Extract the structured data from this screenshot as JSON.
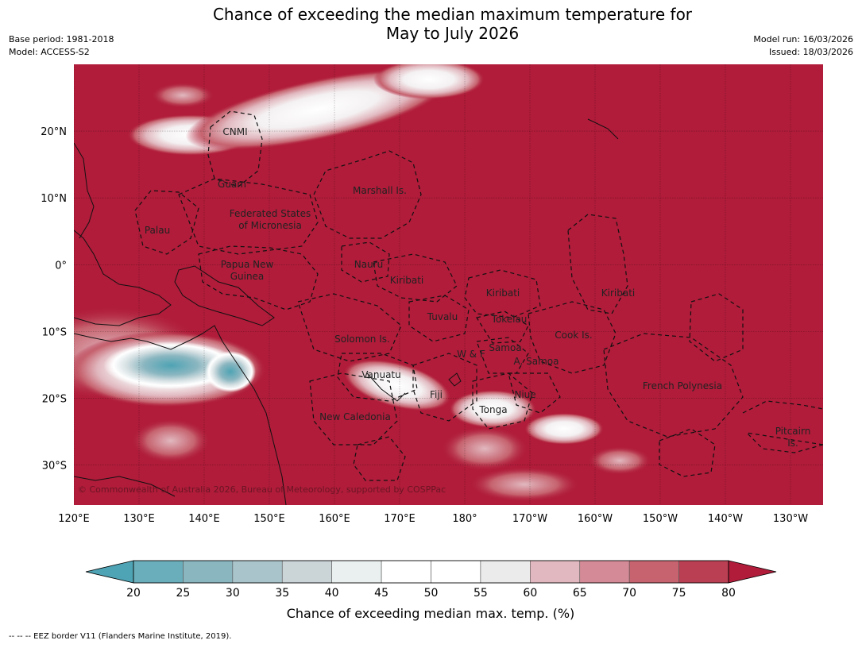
{
  "header": {
    "title_line1": "Chance of exceeding the median maximum temperature for",
    "title_line2": "May to July 2026",
    "base_period": "Base period: 1981-2018",
    "model": "Model: ACCESS-S2",
    "model_run": "Model run: 16/03/2026",
    "issued": "Issued: 18/03/2026"
  },
  "map": {
    "lon_range": [
      120,
      235
    ],
    "lat_range": [
      -36,
      30
    ],
    "lon_ticks": [
      "120°E",
      "130°E",
      "140°E",
      "150°E",
      "160°E",
      "170°E",
      "180°",
      "170°W",
      "160°W",
      "150°W",
      "140°W",
      "130°W"
    ],
    "lat_ticks": [
      "20°N",
      "10°N",
      "0°",
      "10°S",
      "20°S",
      "30°S"
    ],
    "background_color": "#b01c3a",
    "regions": [
      {
        "name": "CNMI"
      },
      {
        "name": "Guam"
      },
      {
        "name": "Marshall Is."
      },
      {
        "name": "Federated States"
      },
      {
        "name": "of Micronesia"
      },
      {
        "name": "Palau"
      },
      {
        "name": "Papua New"
      },
      {
        "name": "Guinea"
      },
      {
        "name": "Nauru"
      },
      {
        "name": "Kiribati"
      },
      {
        "name": "Kiribati"
      },
      {
        "name": "Kiribati"
      },
      {
        "name": "Tuvalu"
      },
      {
        "name": "Tokelau"
      },
      {
        "name": "Cook Is."
      },
      {
        "name": "Solomon Is."
      },
      {
        "name": "Samoa"
      },
      {
        "name": "W & F"
      },
      {
        "name": "A. Samoa"
      },
      {
        "name": "Vanuatu"
      },
      {
        "name": "Fiji"
      },
      {
        "name": "Niue"
      },
      {
        "name": "French Polynesia"
      },
      {
        "name": "Tonga"
      },
      {
        "name": "New Caledonia"
      },
      {
        "name": "Pitcairn"
      },
      {
        "name": "Is."
      }
    ],
    "copyright": "© Commonwealth of Australia 2026, Bureau of Meteorology, supported by COSPPac"
  },
  "colorbar": {
    "title": "Chance of exceeding median max. temp. (%)",
    "ticks": [
      "20",
      "25",
      "30",
      "35",
      "40",
      "45",
      "50",
      "55",
      "60",
      "65",
      "70",
      "75",
      "80"
    ],
    "colors": [
      "#4ea3b4",
      "#6aaebb",
      "#8ab6c0",
      "#a9c4ca",
      "#cbd5d8",
      "#eaf0f0",
      "#ffffff",
      "#ffffff",
      "#ecebec",
      "#e1b8bf",
      "#d58b97",
      "#c6636f",
      "#bb3f53",
      "#b01c3a"
    ]
  },
  "footnote": "--  --  -- EEZ border V11 (Flanders Marine Institute, 2019)."
}
